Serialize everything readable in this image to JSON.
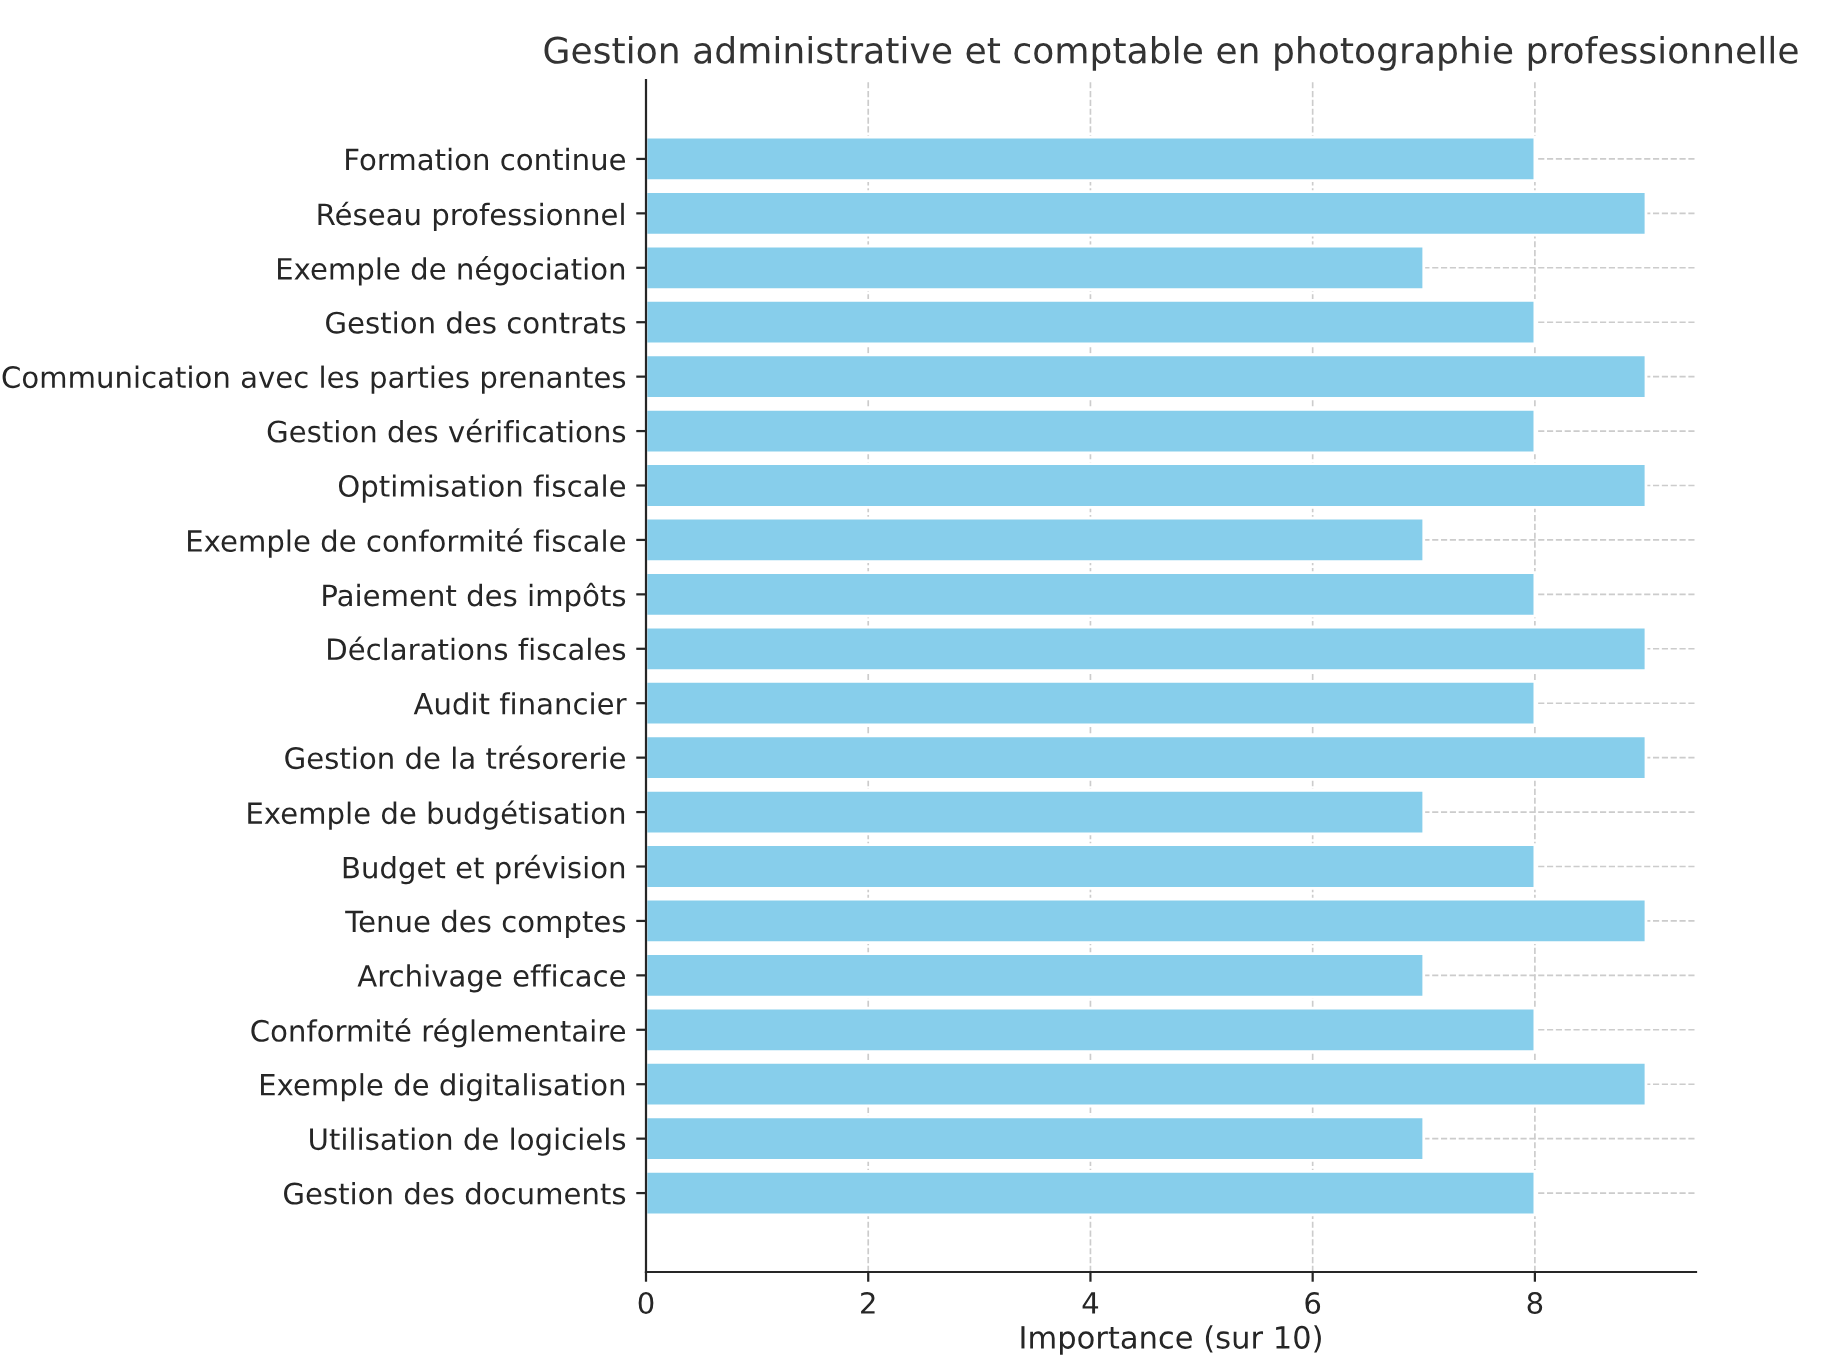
{
  "chart_data": {
    "type": "bar",
    "orientation": "horizontal",
    "title": "Gestion administrative et comptable en photographie professionnelle",
    "xlabel": "Importance (sur 10)",
    "categories": [
      "Formation continue",
      "Réseau professionnel",
      "Exemple de négociation",
      "Gestion des contrats",
      "Communication avec les parties prenantes",
      "Gestion des vérifications",
      "Optimisation fiscale",
      "Exemple de conformité fiscale",
      "Paiement des impôts",
      "Déclarations fiscales",
      "Audit financier",
      "Gestion de la trésorerie",
      "Exemple de budgétisation",
      "Budget et prévision",
      "Tenue des comptes",
      "Archivage efficace",
      "Conformité réglementaire",
      "Exemple de digitalisation",
      "Utilisation de logiciels",
      "Gestion des documents"
    ],
    "values": [
      8,
      9,
      7,
      8,
      9,
      8,
      9,
      7,
      8,
      9,
      8,
      9,
      7,
      8,
      9,
      7,
      8,
      9,
      7,
      8
    ],
    "color": "#87ceeb",
    "xlim": [
      0,
      9.45
    ],
    "xticks": [
      0,
      2,
      4,
      6,
      8
    ],
    "grid": true
  }
}
